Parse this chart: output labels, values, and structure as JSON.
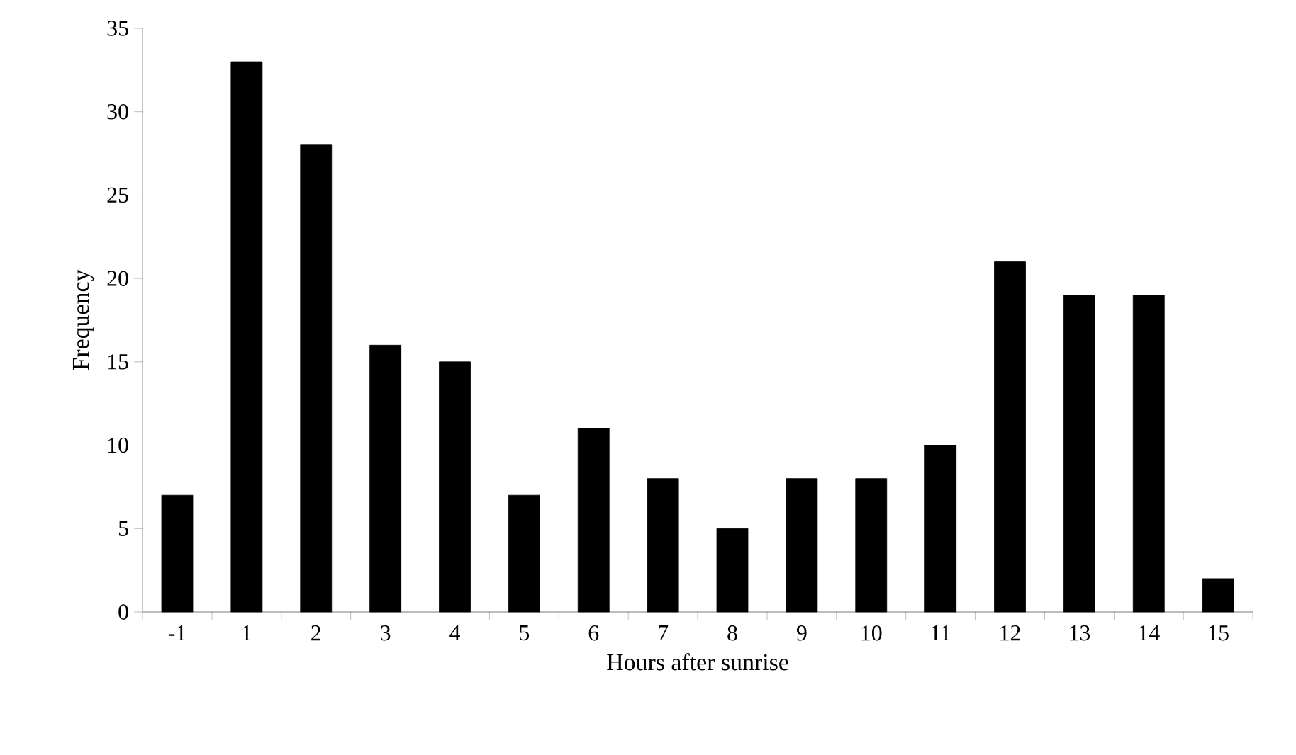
{
  "chart_data": {
    "type": "bar",
    "xlabel": "Hours after sunrise",
    "ylabel": "Frequency",
    "categories": [
      "-1",
      "1",
      "2",
      "3",
      "4",
      "5",
      "6",
      "7",
      "8",
      "9",
      "10",
      "11",
      "12",
      "13",
      "14",
      "15"
    ],
    "values": [
      7,
      33,
      28,
      16,
      15,
      7,
      11,
      8,
      5,
      8,
      8,
      10,
      21,
      19,
      19,
      2
    ],
    "color": "#000000",
    "ylim": [
      0,
      35
    ],
    "yticks": [
      0,
      5,
      10,
      15,
      20,
      25,
      30,
      35
    ]
  }
}
